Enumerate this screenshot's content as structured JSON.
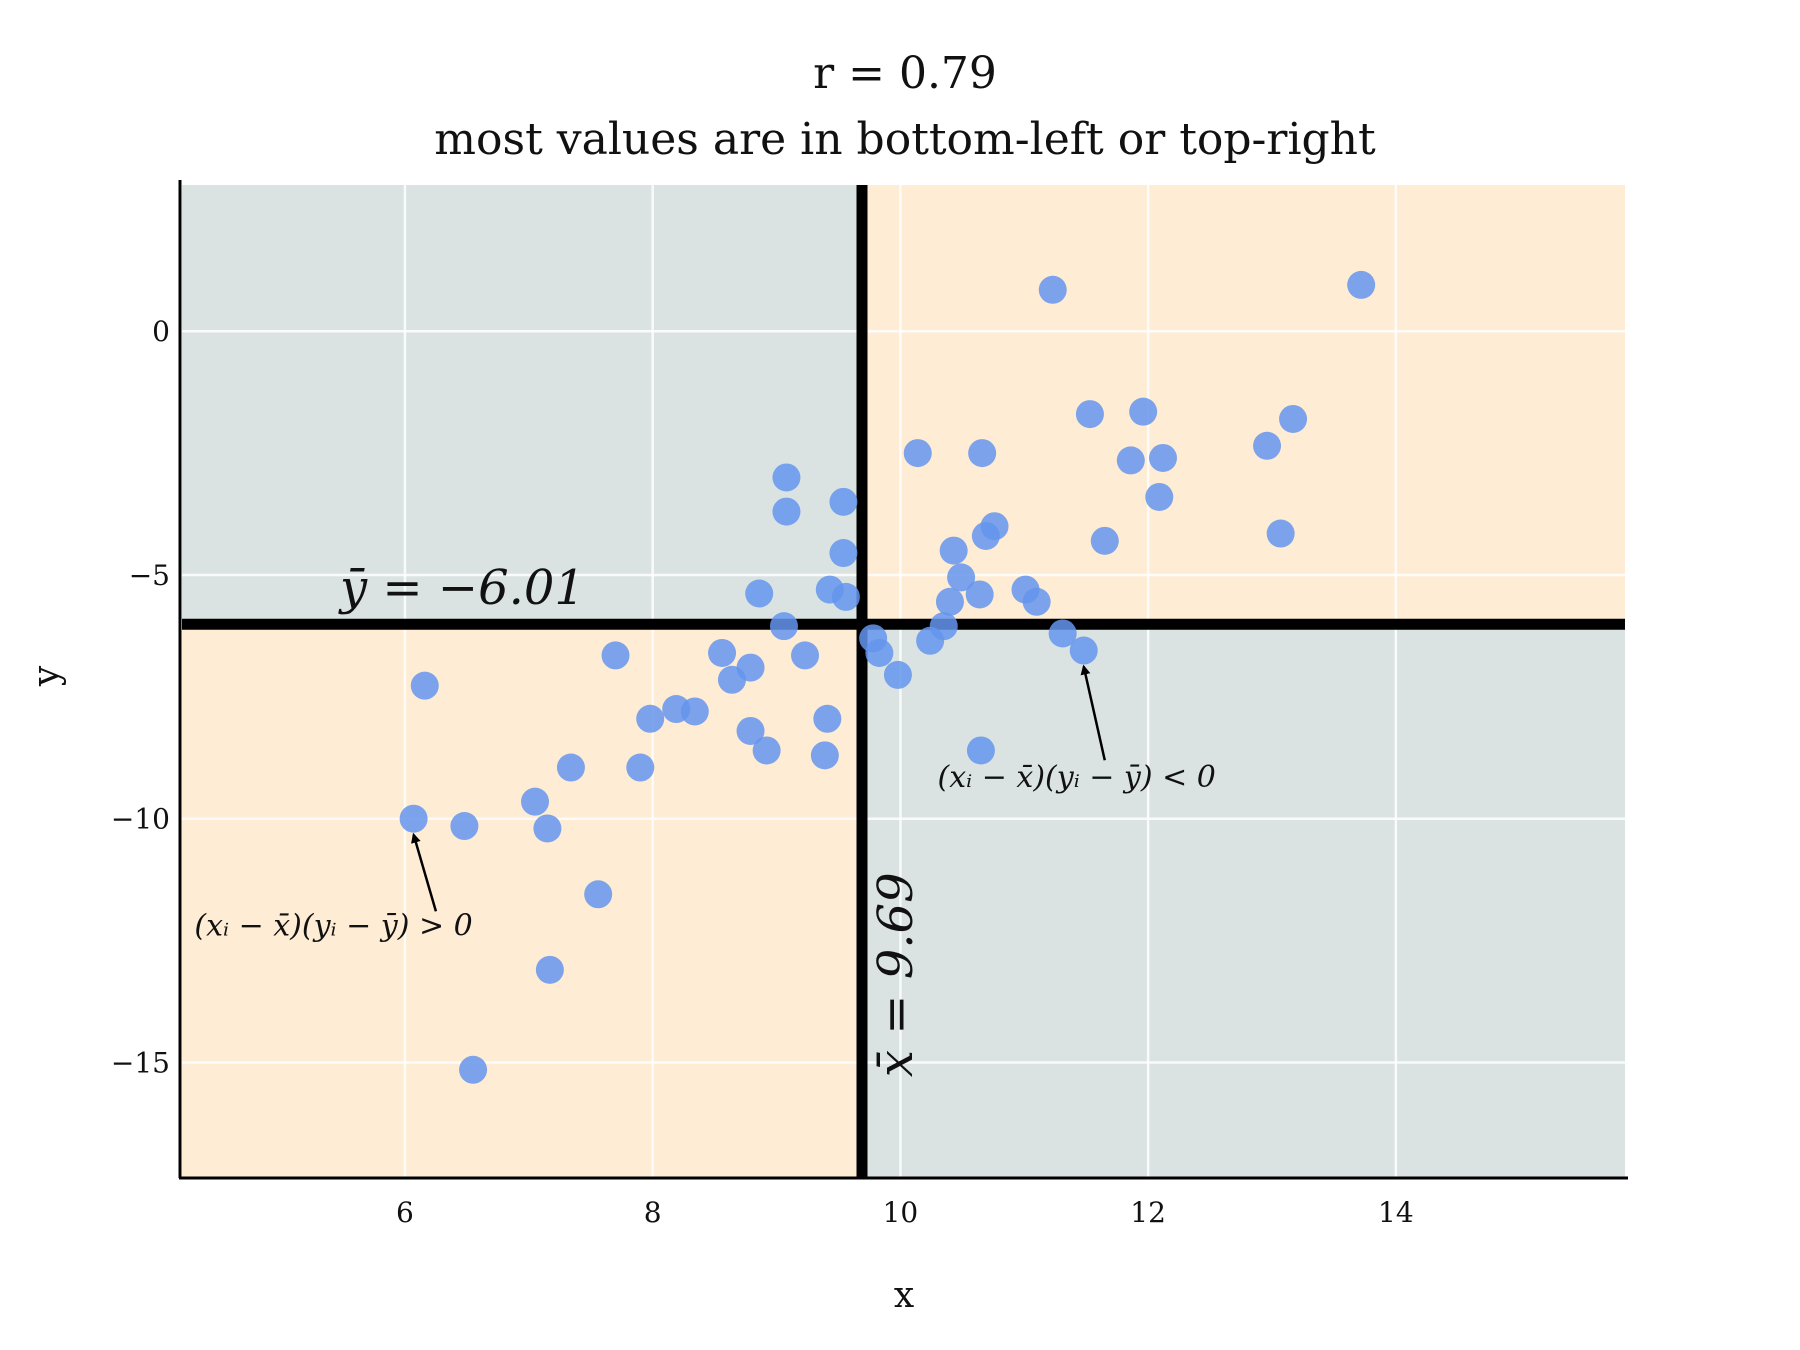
{
  "chart_data": {
    "type": "scatter",
    "title": "r = 0.79",
    "subtitle": "most values are in bottom-left or top-right",
    "xlabel": "x",
    "ylabel": "y",
    "xlim": [
      4.2,
      15.85
    ],
    "ylim": [
      -17.35,
      3.0
    ],
    "xticks": [
      6,
      8,
      10,
      12,
      14
    ],
    "xtick_labels": [
      "6",
      "8",
      "10",
      "12",
      "14"
    ],
    "yticks": [
      0,
      -5,
      -10,
      -15
    ],
    "ytick_labels": [
      "0",
      "−5",
      "−10",
      "−15"
    ],
    "grid": true,
    "x_mean": 9.69,
    "y_mean": -6.01,
    "x_mean_label": "x̄ = 9.69",
    "y_mean_label": "ȳ = −6.01",
    "point_color": "#6495ed",
    "positive_quadrant_color": "#feecd4",
    "negative_quadrant_color": "#dae3e2",
    "mean_line_color": "#000000",
    "annotations": [
      {
        "text": "(xᵢ − x̄)(yᵢ − ȳ) > 0",
        "point": [
          6.07,
          -10.0
        ],
        "text_pos": [
          4.3,
          -12.4
        ]
      },
      {
        "text": "(xᵢ − x̄)(yᵢ − ȳ) < 0",
        "point": [
          11.48,
          -6.55
        ],
        "text_pos": [
          10.3,
          -9.35
        ]
      }
    ],
    "points": [
      [
        6.07,
        -10.0
      ],
      [
        6.16,
        -7.27
      ],
      [
        6.48,
        -10.15
      ],
      [
        6.55,
        -15.15
      ],
      [
        7.05,
        -9.65
      ],
      [
        7.15,
        -10.2
      ],
      [
        7.17,
        -13.1
      ],
      [
        7.34,
        -8.95
      ],
      [
        7.56,
        -11.55
      ],
      [
        7.7,
        -6.65
      ],
      [
        7.9,
        -8.95
      ],
      [
        7.98,
        -7.95
      ],
      [
        8.19,
        -7.75
      ],
      [
        8.34,
        -7.8
      ],
      [
        8.56,
        -6.6
      ],
      [
        8.64,
        -7.15
      ],
      [
        8.79,
        -6.9
      ],
      [
        8.79,
        -8.2
      ],
      [
        8.86,
        -5.38
      ],
      [
        8.92,
        -8.6
      ],
      [
        9.06,
        -6.05
      ],
      [
        9.08,
        -3.0
      ],
      [
        9.08,
        -3.7
      ],
      [
        9.23,
        -6.65
      ],
      [
        9.39,
        -8.7
      ],
      [
        9.41,
        -7.95
      ],
      [
        9.43,
        -5.3
      ],
      [
        9.54,
        -3.5
      ],
      [
        9.54,
        -4.55
      ],
      [
        9.56,
        -5.45
      ],
      [
        9.78,
        -6.3
      ],
      [
        9.83,
        -6.6
      ],
      [
        9.98,
        -7.05
      ],
      [
        10.14,
        -2.5
      ],
      [
        10.24,
        -6.35
      ],
      [
        10.35,
        -6.05
      ],
      [
        10.4,
        -5.55
      ],
      [
        10.43,
        -4.5
      ],
      [
        10.49,
        -5.05
      ],
      [
        10.64,
        -5.4
      ],
      [
        10.65,
        -8.6
      ],
      [
        10.66,
        -2.5
      ],
      [
        10.69,
        -4.2
      ],
      [
        10.76,
        -4.0
      ],
      [
        11.01,
        -5.3
      ],
      [
        11.1,
        -5.55
      ],
      [
        11.23,
        0.85
      ],
      [
        11.31,
        -6.2
      ],
      [
        11.48,
        -6.55
      ],
      [
        11.53,
        -1.7
      ],
      [
        11.65,
        -4.3
      ],
      [
        11.86,
        -2.65
      ],
      [
        11.96,
        -1.65
      ],
      [
        12.09,
        -3.4
      ],
      [
        12.12,
        -2.6
      ],
      [
        12.96,
        -2.35
      ],
      [
        13.07,
        -4.15
      ],
      [
        13.17,
        -1.8
      ],
      [
        13.72,
        0.95
      ]
    ]
  }
}
